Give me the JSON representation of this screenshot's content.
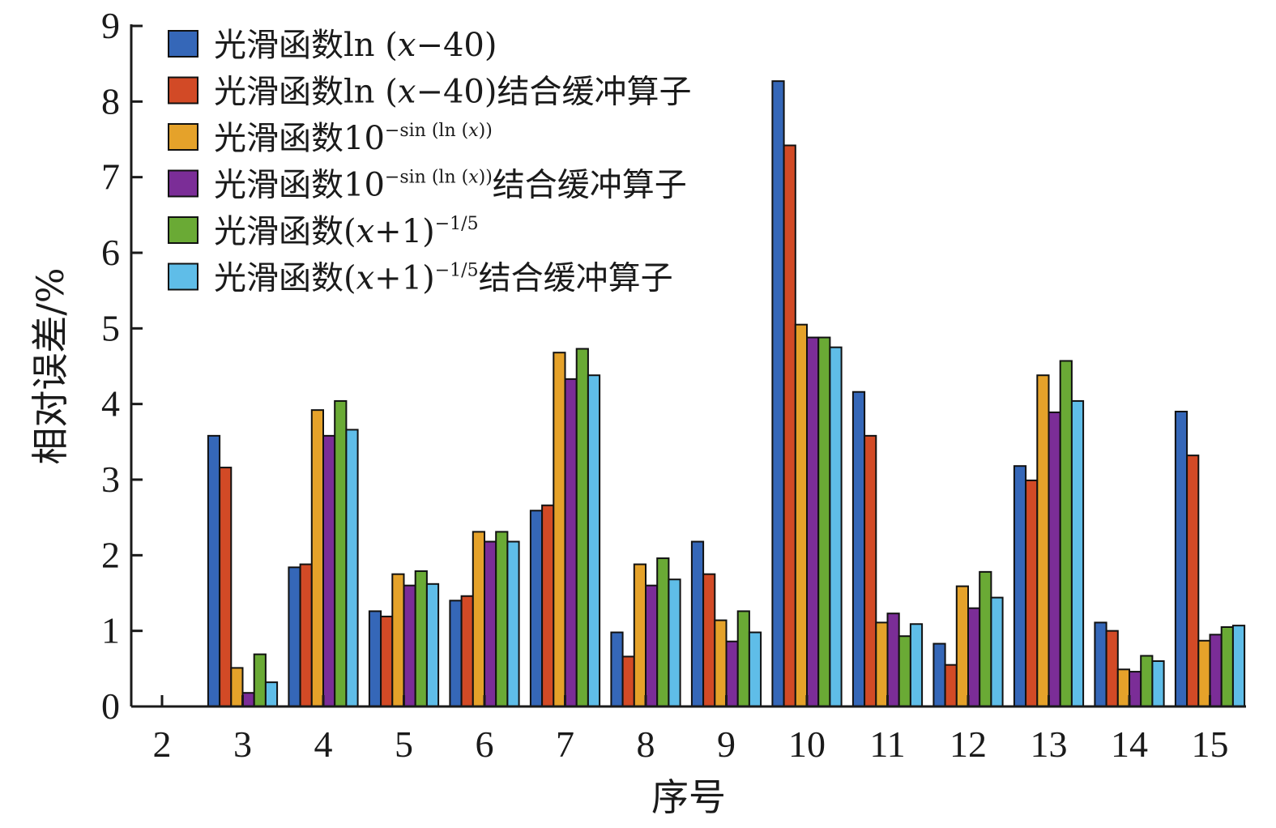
{
  "chart_data": {
    "type": "bar",
    "xlabel": "序号",
    "ylabel": "相对误差/%",
    "ylim": [
      0,
      9
    ],
    "yticks": [
      "0",
      "1",
      "2",
      "3",
      "4",
      "5",
      "6",
      "7",
      "8",
      "9"
    ],
    "categories": [
      "2",
      "3",
      "4",
      "5",
      "6",
      "7",
      "8",
      "9",
      "10",
      "11",
      "12",
      "13",
      "14",
      "15"
    ],
    "legend_position": "top-left",
    "grid": false,
    "series": [
      {
        "name": "光滑函数ln (x−40)",
        "color": "#3567b8",
        "values": [
          0,
          3.58,
          1.84,
          1.26,
          1.4,
          2.59,
          0.98,
          2.18,
          8.27,
          4.16,
          0.83,
          3.18,
          1.11,
          3.9
        ]
      },
      {
        "name": "光滑函数ln (x−40)结合缓冲算子",
        "color": "#d24a26",
        "values": [
          0,
          3.16,
          1.88,
          1.19,
          1.46,
          2.66,
          0.66,
          1.75,
          7.42,
          3.58,
          0.55,
          2.99,
          1.0,
          3.32
        ]
      },
      {
        "name": "光滑函数10−sin (ln (x))",
        "color": "#e5a22a",
        "values": [
          0,
          0.51,
          3.92,
          1.75,
          2.31,
          4.68,
          1.88,
          1.14,
          5.05,
          1.11,
          1.59,
          4.38,
          0.49,
          0.87
        ]
      },
      {
        "name": "光滑函数10−sin (ln (x))结合缓冲算子",
        "color": "#7b2d97",
        "values": [
          0,
          0.18,
          3.58,
          1.6,
          2.18,
          4.33,
          1.6,
          0.86,
          4.88,
          1.23,
          1.3,
          3.89,
          0.46,
          0.95
        ]
      },
      {
        "name": "光滑函数(x+1)−1/5",
        "color": "#6aaa35",
        "values": [
          0,
          0.69,
          4.04,
          1.79,
          2.31,
          4.73,
          1.96,
          1.26,
          4.88,
          0.93,
          1.78,
          4.57,
          0.67,
          1.05
        ]
      },
      {
        "name": "光滑函数(x+1)−1/5结合缓冲算子",
        "color": "#5fbde8",
        "values": [
          0,
          0.32,
          3.66,
          1.62,
          2.18,
          4.38,
          1.68,
          0.98,
          4.75,
          1.09,
          1.44,
          4.04,
          0.6,
          1.07
        ]
      }
    ],
    "legend": [
      {
        "parts": [
          {
            "t": "光滑函数ln (",
            "s": "n"
          },
          {
            "t": "x",
            "s": "i"
          },
          {
            "t": "−40)",
            "s": "n"
          }
        ]
      },
      {
        "parts": [
          {
            "t": "光滑函数ln (",
            "s": "n"
          },
          {
            "t": "x",
            "s": "i"
          },
          {
            "t": "−40)结合缓冲算子",
            "s": "n"
          }
        ]
      },
      {
        "parts": [
          {
            "t": "光滑函数10",
            "s": "n"
          },
          {
            "t": "−sin (ln (",
            "s": "sup"
          },
          {
            "t": "x",
            "s": "supi"
          },
          {
            "t": "))",
            "s": "sup"
          }
        ]
      },
      {
        "parts": [
          {
            "t": "光滑函数10",
            "s": "n"
          },
          {
            "t": "−sin (ln (",
            "s": "sup"
          },
          {
            "t": "x",
            "s": "supi"
          },
          {
            "t": "))",
            "s": "sup"
          },
          {
            "t": "结合缓冲算子",
            "s": "n"
          }
        ]
      },
      {
        "parts": [
          {
            "t": "光滑函数(",
            "s": "n"
          },
          {
            "t": "x",
            "s": "i"
          },
          {
            "t": "+1)",
            "s": "n"
          },
          {
            "t": "−1/5",
            "s": "sup"
          }
        ]
      },
      {
        "parts": [
          {
            "t": "光滑函数(",
            "s": "n"
          },
          {
            "t": "x",
            "s": "i"
          },
          {
            "t": "+1)",
            "s": "n"
          },
          {
            "t": "−1/5",
            "s": "sup"
          },
          {
            "t": "结合缓冲算子",
            "s": "n"
          }
        ]
      }
    ]
  }
}
